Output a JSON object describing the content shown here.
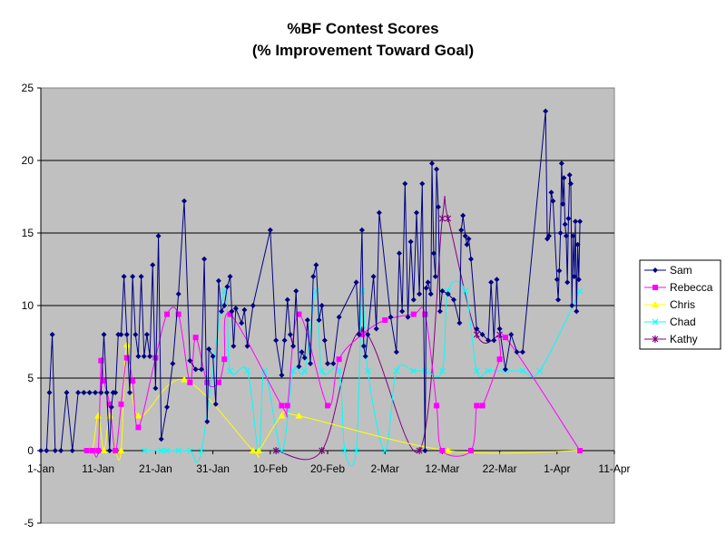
{
  "chart_data": {
    "type": "line",
    "title": "%BF Contest Scores",
    "subtitle": "(% Improvement Toward Goal)",
    "xlabel": "",
    "ylabel": "",
    "x_ticks": [
      "1-Jan",
      "11-Jan",
      "21-Jan",
      "31-Jan",
      "10-Feb",
      "20-Feb",
      "2-Mar",
      "12-Mar",
      "22-Mar",
      "1-Apr",
      "11-Apr"
    ],
    "xlim_days": [
      0,
      100
    ],
    "y_ticks": [
      -5,
      0,
      5,
      10,
      15,
      20,
      25
    ],
    "ylim": [
      -5,
      25
    ],
    "grid": true,
    "plot_background": "#c0c0c0",
    "legend_position": "right",
    "series": [
      {
        "name": "Sam",
        "color": "#000080",
        "marker": "diamond",
        "points": [
          [
            0,
            0
          ],
          [
            1,
            0
          ],
          [
            1.5,
            4
          ],
          [
            2,
            8
          ],
          [
            2.5,
            0
          ],
          [
            3.5,
            0
          ],
          [
            4.5,
            4
          ],
          [
            5.5,
            0
          ],
          [
            6.5,
            4
          ],
          [
            7.5,
            4
          ],
          [
            8.5,
            4
          ],
          [
            9.5,
            4
          ],
          [
            10.5,
            4
          ],
          [
            11,
            8
          ],
          [
            11.5,
            4
          ],
          [
            12,
            0
          ],
          [
            12.3,
            3
          ],
          [
            12.6,
            4
          ],
          [
            13,
            4
          ],
          [
            13.5,
            8
          ],
          [
            14,
            8
          ],
          [
            14.5,
            12
          ],
          [
            15,
            8
          ],
          [
            15.5,
            4
          ],
          [
            16,
            12
          ],
          [
            16.5,
            8
          ],
          [
            17,
            6.5
          ],
          [
            17.5,
            12
          ],
          [
            18,
            6.5
          ],
          [
            18.5,
            8
          ],
          [
            19,
            6.5
          ],
          [
            19.5,
            12.8
          ],
          [
            20,
            4.3
          ],
          [
            20.5,
            14.8
          ],
          [
            21,
            0.8
          ],
          [
            22,
            3
          ],
          [
            23,
            6
          ],
          [
            24,
            10.8
          ],
          [
            25,
            17.2
          ],
          [
            26,
            6.2
          ],
          [
            27,
            5.6
          ],
          [
            28,
            5.6
          ],
          [
            28.5,
            13.2
          ],
          [
            29,
            2
          ],
          [
            29.3,
            7
          ],
          [
            30,
            6.5
          ],
          [
            30.5,
            3.2
          ],
          [
            31,
            11.7
          ],
          [
            31.5,
            9.6
          ],
          [
            32,
            10
          ],
          [
            32.5,
            11.3
          ],
          [
            33,
            12
          ],
          [
            33.3,
            9.6
          ],
          [
            33.6,
            7.2
          ],
          [
            34,
            9.8
          ],
          [
            35,
            8.8
          ],
          [
            35.5,
            9.7
          ],
          [
            36,
            7.2
          ],
          [
            37,
            10
          ],
          [
            40,
            15.2
          ],
          [
            41,
            7.6
          ],
          [
            42,
            5.2
          ],
          [
            42.5,
            7.6
          ],
          [
            43,
            10.4
          ],
          [
            43.5,
            8
          ],
          [
            44,
            7.2
          ],
          [
            44.5,
            11
          ],
          [
            45,
            5.8
          ],
          [
            45.5,
            6.8
          ],
          [
            46,
            6.4
          ],
          [
            46.5,
            9
          ],
          [
            47,
            6
          ],
          [
            47.5,
            12
          ],
          [
            48,
            12.8
          ],
          [
            48.5,
            9
          ],
          [
            49,
            10
          ],
          [
            49.5,
            7.6
          ],
          [
            50,
            6
          ],
          [
            51,
            6
          ],
          [
            52,
            9.2
          ],
          [
            55,
            11.6
          ],
          [
            55.5,
            8
          ],
          [
            56,
            15.2
          ],
          [
            56.3,
            7.2
          ],
          [
            56.6,
            6.5
          ],
          [
            57,
            8
          ],
          [
            58,
            12
          ],
          [
            58.5,
            8.4
          ],
          [
            59,
            16.4
          ],
          [
            61,
            9.2
          ],
          [
            62,
            6.8
          ],
          [
            62.5,
            13.6
          ],
          [
            63,
            9.6
          ],
          [
            63.5,
            18.4
          ],
          [
            64,
            9.2
          ],
          [
            64.5,
            14.4
          ],
          [
            65,
            10.4
          ],
          [
            65.5,
            16.4
          ],
          [
            66,
            10.8
          ],
          [
            66.5,
            18.4
          ],
          [
            67,
            0
          ],
          [
            67.2,
            11.2
          ],
          [
            67.5,
            11.6
          ],
          [
            68,
            10.8
          ],
          [
            68.2,
            19.8
          ],
          [
            68.5,
            13.6
          ],
          [
            68.8,
            12
          ],
          [
            69,
            19.4
          ],
          [
            69.3,
            16.8
          ],
          [
            69.6,
            9.6
          ],
          [
            70,
            11
          ],
          [
            71,
            10.8
          ],
          [
            72,
            10.4
          ],
          [
            73,
            8.8
          ],
          [
            73.3,
            15.2
          ],
          [
            73.6,
            16.2
          ],
          [
            74,
            14.8
          ],
          [
            74.3,
            14.2
          ],
          [
            74.6,
            14.6
          ],
          [
            75,
            13.2
          ],
          [
            76,
            8.4
          ],
          [
            77,
            8
          ],
          [
            78,
            7.6
          ],
          [
            78.5,
            11.6
          ],
          [
            79,
            7.6
          ],
          [
            79.5,
            11.8
          ],
          [
            80,
            8.4
          ],
          [
            81,
            5.6
          ],
          [
            82,
            8
          ],
          [
            83,
            6.8
          ],
          [
            84,
            6.8
          ],
          [
            88,
            23.4
          ],
          [
            88.3,
            14.6
          ],
          [
            88.6,
            14.8
          ],
          [
            89,
            17.8
          ],
          [
            89.3,
            17.2
          ],
          [
            90,
            11.8
          ],
          [
            90.2,
            10.4
          ],
          [
            90.4,
            12.4
          ],
          [
            90.6,
            15
          ],
          [
            90.8,
            19.8
          ],
          [
            91,
            17
          ],
          [
            91.2,
            18.8
          ],
          [
            91.4,
            15.6
          ],
          [
            91.6,
            14.8
          ],
          [
            91.8,
            11.6
          ],
          [
            92,
            16
          ],
          [
            92.2,
            19
          ],
          [
            92.4,
            18.4
          ],
          [
            92.6,
            10
          ],
          [
            92.8,
            14.8
          ],
          [
            93,
            12
          ],
          [
            93.2,
            15.8
          ],
          [
            93.4,
            9.6
          ],
          [
            93.6,
            14.2
          ],
          [
            93.8,
            11.8
          ],
          [
            94,
            15.8
          ]
        ]
      },
      {
        "name": "Rebecca",
        "color": "#ff00ff",
        "marker": "square",
        "points": [
          [
            8,
            0
          ],
          [
            9,
            0
          ],
          [
            10,
            0
          ],
          [
            10.5,
            6.2
          ],
          [
            11,
            4.8
          ],
          [
            12,
            3.2
          ],
          [
            13,
            0
          ],
          [
            14,
            3.2
          ],
          [
            15,
            6.4
          ],
          [
            16,
            4.8
          ],
          [
            17,
            1.6
          ],
          [
            20,
            6.4
          ],
          [
            22,
            9.4
          ],
          [
            24,
            9.4
          ],
          [
            26,
            4.7
          ],
          [
            27,
            7.8
          ],
          [
            29,
            4.7
          ],
          [
            31,
            4.7
          ],
          [
            32,
            6.3
          ],
          [
            33,
            9.4
          ],
          [
            42,
            3.1
          ],
          [
            43,
            3.1
          ],
          [
            45,
            9.4
          ],
          [
            50,
            3.1
          ],
          [
            52,
            6.3
          ],
          [
            56,
            8
          ],
          [
            60,
            9
          ],
          [
            65,
            9.4
          ],
          [
            67,
            9.4
          ],
          [
            69,
            3.1
          ],
          [
            70,
            0
          ],
          [
            75,
            0
          ],
          [
            76,
            3.1
          ],
          [
            77,
            3.1
          ],
          [
            80,
            6.3
          ],
          [
            81,
            7.8
          ],
          [
            94,
            0
          ]
        ]
      },
      {
        "name": "Chris",
        "color": "#ffff00",
        "marker": "triangle",
        "points": [
          [
            8,
            0
          ],
          [
            9,
            0
          ],
          [
            10,
            2.4
          ],
          [
            11,
            0
          ],
          [
            12,
            2.4
          ],
          [
            13,
            0
          ],
          [
            14,
            0
          ],
          [
            15,
            7.3
          ],
          [
            17,
            2.4
          ],
          [
            25,
            4.9
          ],
          [
            37,
            0
          ],
          [
            38,
            0
          ],
          [
            42,
            2.4
          ],
          [
            45,
            2.4
          ],
          [
            71,
            0
          ],
          [
            94,
            0
          ]
        ]
      },
      {
        "name": "Chad",
        "color": "#00ffff",
        "marker": "x",
        "points": [
          [
            18,
            0
          ],
          [
            21,
            0
          ],
          [
            22,
            0
          ],
          [
            24,
            0
          ],
          [
            26,
            0
          ],
          [
            28,
            0
          ],
          [
            32,
            11
          ],
          [
            33,
            5.5
          ],
          [
            36,
            5.5
          ],
          [
            38,
            0
          ],
          [
            39,
            5.5
          ],
          [
            42,
            0
          ],
          [
            44,
            5.5
          ],
          [
            46,
            5.5
          ],
          [
            48,
            11
          ],
          [
            49,
            5.5
          ],
          [
            52,
            5.5
          ],
          [
            53,
            0
          ],
          [
            55,
            0
          ],
          [
            56,
            11
          ],
          [
            57,
            5.5
          ],
          [
            60,
            0
          ],
          [
            62,
            5.5
          ],
          [
            65,
            5.5
          ],
          [
            67,
            5.5
          ],
          [
            70,
            5.5
          ],
          [
            71,
            11
          ],
          [
            74,
            11
          ],
          [
            76,
            5.5
          ],
          [
            78,
            5.5
          ],
          [
            81,
            5.5
          ],
          [
            84,
            5.5
          ],
          [
            87,
            5.5
          ],
          [
            94,
            11
          ]
        ]
      },
      {
        "name": "Kathy",
        "color": "#800080",
        "marker": "star",
        "points": [
          [
            41,
            0
          ],
          [
            49,
            0
          ],
          [
            56,
            8.3
          ],
          [
            66,
            0
          ],
          [
            70,
            16
          ],
          [
            71,
            16
          ],
          [
            76,
            8
          ],
          [
            80,
            8
          ]
        ]
      }
    ]
  }
}
